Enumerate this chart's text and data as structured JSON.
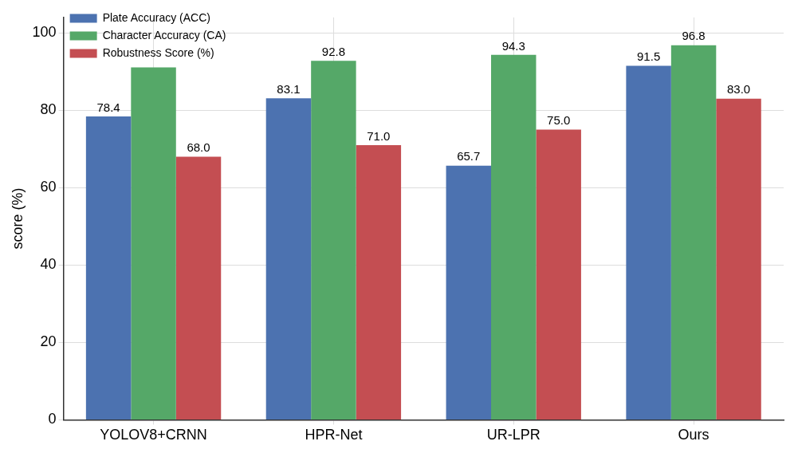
{
  "chart_data": {
    "type": "bar",
    "ylabel": "score (%)",
    "categories": [
      "YOLOV8+CRNN",
      "HPR-Net",
      "UR-LPR",
      "Ours"
    ],
    "series": [
      {
        "name": "Plate Accuracy (ACC)",
        "color": "#4c72b0",
        "values": [
          78.4,
          83.1,
          65.7,
          91.5
        ],
        "value_labels": [
          "78.4",
          "83.1",
          "65.7",
          "91.5"
        ]
      },
      {
        "name": "Character Accuracy (CA)",
        "color": "#55a868",
        "values": [
          91.1,
          92.8,
          94.3,
          96.8
        ],
        "value_labels": [
          null,
          "92.8",
          "94.3",
          "96.8"
        ]
      },
      {
        "name": "Robustness Score (%)",
        "color": "#c44e52",
        "values": [
          68.0,
          71.0,
          75.0,
          83.0
        ],
        "value_labels": [
          "68.0",
          "71.0",
          "75.0",
          "83.0"
        ]
      }
    ],
    "ylim": [
      0,
      104
    ],
    "yticks": [
      0,
      20,
      40,
      60,
      80,
      100
    ],
    "grid": true,
    "legend": "top left"
  }
}
